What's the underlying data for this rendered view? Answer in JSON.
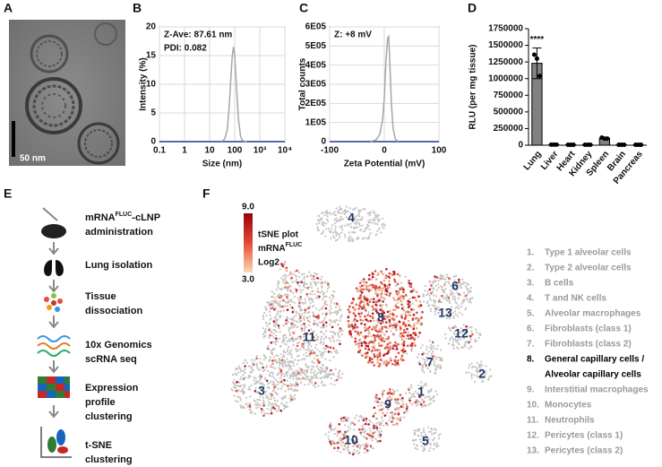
{
  "panel_labels": [
    "A",
    "B",
    "C",
    "D",
    "E",
    "F"
  ],
  "image_a": {
    "scale_bar": "50 nm"
  },
  "chart_data": [
    {
      "type": "line",
      "xlabel": "Size (nm)",
      "ylabel": "Intensity (%)",
      "annotations": [
        "Z-Ave: 87.61 nm",
        "PDI: 0.082"
      ],
      "x": [
        30,
        40,
        50,
        60,
        70,
        80,
        90,
        100,
        120,
        140,
        170,
        200,
        300
      ],
      "series": [
        {
          "color": "#a6a6a6",
          "values": [
            0,
            0.5,
            2,
            6,
            11,
            15,
            16.5,
            15,
            9,
            4,
            1,
            0.2,
            0
          ]
        }
      ],
      "log_x": true,
      "xlim": [
        0.1,
        10000
      ],
      "xticks": [
        0.1,
        1,
        10,
        100,
        {
          "value": 1000,
          "label": "10³"
        },
        {
          "value": 10000,
          "label": "10⁴"
        }
      ],
      "ylim": [
        0,
        20
      ],
      "yticks": [
        0,
        5,
        10,
        15,
        20
      ],
      "grid": true
    },
    {
      "type": "line",
      "xlabel": "Zeta Potential (mV)",
      "ylabel": "Total counts",
      "annotations": [
        "Z: +8 mV"
      ],
      "x": [
        -25,
        -15,
        -8,
        -3,
        0,
        3,
        6,
        8,
        10,
        13,
        16,
        20,
        25
      ],
      "series": [
        {
          "color": "#a6a6a6",
          "values": [
            0,
            10000,
            40000,
            120000,
            230000,
            420000,
            540000,
            550000,
            420000,
            200000,
            70000,
            15000,
            0
          ]
        }
      ],
      "xlim": [
        -100,
        100
      ],
      "xticks": [
        -100,
        0,
        100
      ],
      "ylim": [
        0,
        600000
      ],
      "yticks": [
        0,
        {
          "value": 100000,
          "label": "1E05"
        },
        {
          "value": 200000,
          "label": "2E05"
        },
        {
          "value": 300000,
          "label": "3E05"
        },
        {
          "value": 400000,
          "label": "4E05"
        },
        {
          "value": 500000,
          "label": "5E05"
        },
        {
          "value": 600000,
          "label": "6E05"
        }
      ],
      "grid": true
    },
    {
      "type": "bar",
      "ylabel": "RLU (per mg tissue)",
      "annotation": "****",
      "categories": [
        "Lung",
        "Liver",
        "Heart",
        "Kidney",
        "Spleen",
        "Brain",
        "Pancreas"
      ],
      "values": [
        1230000,
        8000,
        6000,
        7000,
        105000,
        6000,
        6000
      ],
      "errors": [
        230000,
        0,
        0,
        0,
        12000,
        0,
        0
      ],
      "points": [
        [
          1360000,
          1300000,
          1040000
        ],
        [
          8000,
          8000,
          8000
        ],
        [
          6000,
          6000,
          6000
        ],
        [
          7000,
          7000,
          7000
        ],
        [
          115000,
          100000,
          100000
        ],
        [
          6000,
          6000,
          6000
        ],
        [
          6000,
          6000,
          6000
        ]
      ],
      "color": "#808080",
      "ylim": [
        0,
        1750000
      ],
      "yticks": [
        0,
        250000,
        500000,
        750000,
        1000000,
        1250000,
        1500000,
        1750000
      ]
    }
  ],
  "workflow": {
    "steps": [
      {
        "lines": [
          "mRNA",
          "FLUC",
          "-cLNP",
          "administration"
        ]
      },
      {
        "lines": [
          "Lung isolation"
        ]
      },
      {
        "lines": [
          "Tissue",
          "dissociation"
        ]
      },
      {
        "lines": [
          "10x Genomics",
          "scRNA seq"
        ]
      },
      {
        "lines": [
          "Expression",
          "profile",
          "clustering"
        ]
      },
      {
        "lines": [
          "t-SNE",
          "clustering"
        ]
      }
    ]
  },
  "tsne": {
    "colorbar_max": "9.0",
    "colorbar_min": "3.0",
    "legend_title": [
      "tSNE plot",
      "mRNA",
      "FLUC",
      "Log2"
    ],
    "cluster_labels": [
      "4",
      "6",
      "13",
      "8",
      "12",
      "11",
      "7",
      "2",
      "1",
      "3",
      "9",
      "10",
      "5"
    ],
    "cell_types": [
      {
        "number": "1.",
        "name": "Type 1 alveolar cells"
      },
      {
        "number": "2.",
        "name": "Type 2 alveolar cells"
      },
      {
        "number": "3.",
        "name": "B cells"
      },
      {
        "number": "4.",
        "name": "T and NK cells"
      },
      {
        "number": "5.",
        "name": "Alveolar macrophages"
      },
      {
        "number": "6.",
        "name": "Fibroblasts (class 1)"
      },
      {
        "number": "7.",
        "name": "Fibroblasts (class 2)"
      },
      {
        "number": "8.",
        "name": "General capillary cells /",
        "name_line2": "Alveolar capillary cells"
      },
      {
        "number": "9.",
        "name": "Interstitial macrophages"
      },
      {
        "number": "10.",
        "name": "Monocytes"
      },
      {
        "number": "11.",
        "name": "Neutrophils"
      },
      {
        "number": "12.",
        "name": "Pericytes (class 1)"
      },
      {
        "number": "13.",
        "name": "Pericytes (class 2)"
      }
    ]
  }
}
